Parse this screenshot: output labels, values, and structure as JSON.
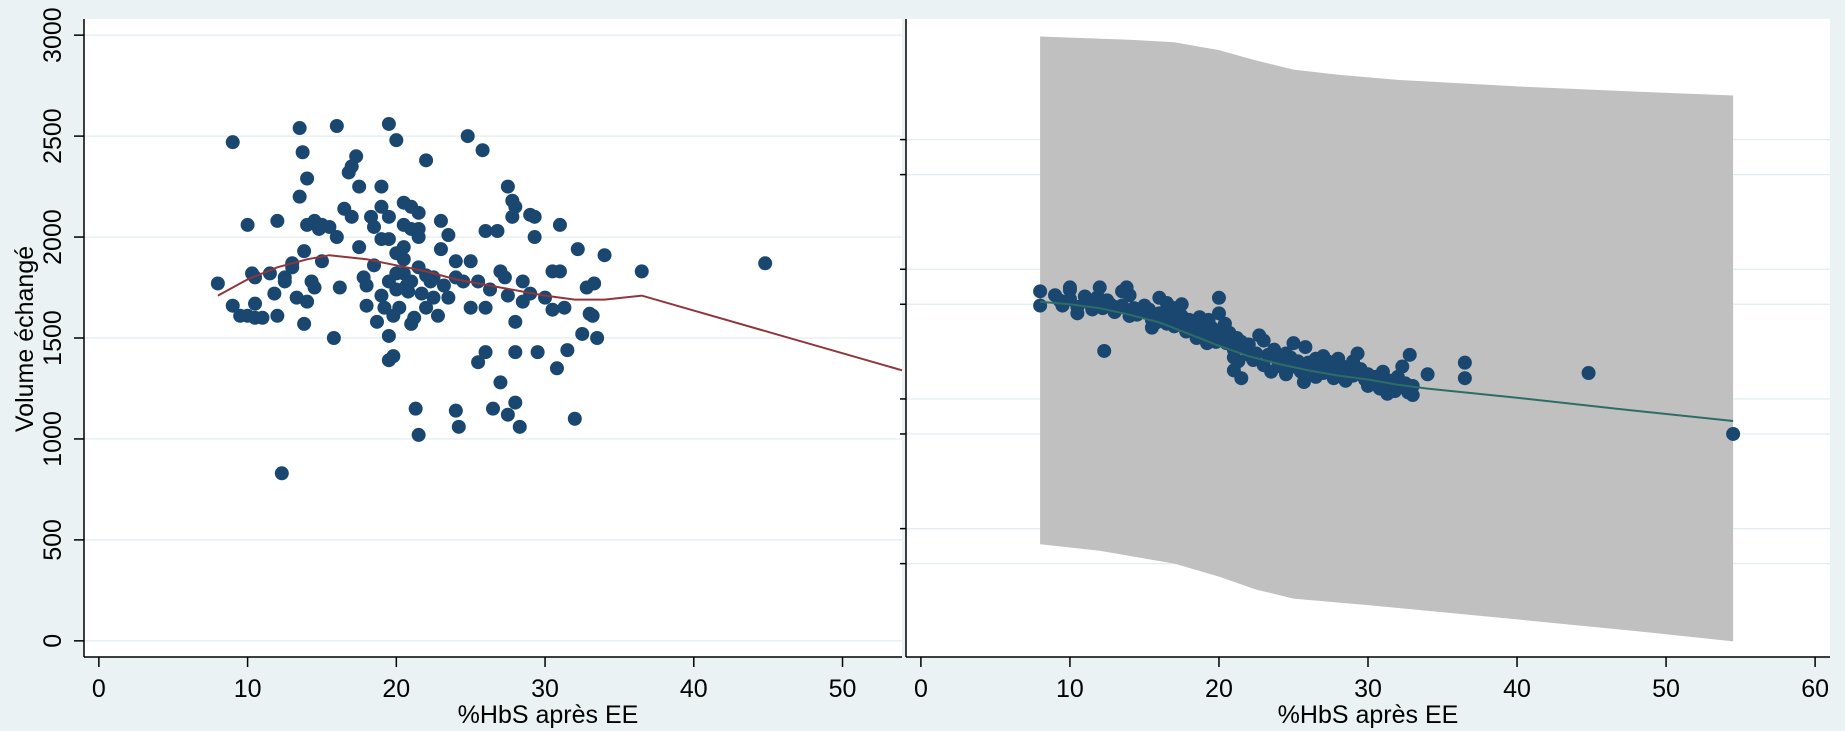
{
  "colors": {
    "background": "#eaf2f3",
    "plot_background": "#ffffff",
    "gridline": "#e2ecef",
    "marker": "#1a476f",
    "line_left": "#90353b",
    "line_right": "#2d6d66",
    "band": "#c0c0c0"
  },
  "chart_data": [
    {
      "type": "scatter",
      "xlabel": "%HbS après EE",
      "ylabel": "Volume échangé",
      "xlim": [
        -1,
        54
      ],
      "ylim": [
        -80,
        3080
      ],
      "xticks": [
        0,
        10,
        20,
        30,
        40,
        50
      ],
      "yticks": [
        0,
        500,
        1000,
        1500,
        2000,
        2500,
        3000
      ],
      "grid": true,
      "marker_color": "#1a476f",
      "points": [
        [
          8.0,
          1770
        ],
        [
          9.0,
          2470
        ],
        [
          9.0,
          1660
        ],
        [
          9.5,
          1610
        ],
        [
          10.0,
          2060
        ],
        [
          10.0,
          1610
        ],
        [
          10.3,
          1820
        ],
        [
          10.5,
          1800
        ],
        [
          10.5,
          1670
        ],
        [
          10.5,
          1600
        ],
        [
          11.0,
          1600
        ],
        [
          11.5,
          1820
        ],
        [
          11.8,
          1720
        ],
        [
          12.0,
          2080
        ],
        [
          12.0,
          1610
        ],
        [
          12.3,
          830
        ],
        [
          12.5,
          1800
        ],
        [
          12.5,
          1780
        ],
        [
          13.0,
          1870
        ],
        [
          13.0,
          1850
        ],
        [
          13.3,
          1700
        ],
        [
          13.5,
          2540
        ],
        [
          13.5,
          2200
        ],
        [
          13.7,
          2420
        ],
        [
          13.8,
          1930
        ],
        [
          13.8,
          1570
        ],
        [
          14.0,
          2290
        ],
        [
          14.0,
          2060
        ],
        [
          14.0,
          1680
        ],
        [
          14.3,
          1780
        ],
        [
          14.5,
          2080
        ],
        [
          14.5,
          1750
        ],
        [
          14.8,
          2040
        ],
        [
          15.0,
          2060
        ],
        [
          15.0,
          1880
        ],
        [
          15.5,
          2050
        ],
        [
          15.8,
          1500
        ],
        [
          16.0,
          2550
        ],
        [
          16.0,
          2000
        ],
        [
          16.2,
          1750
        ],
        [
          16.5,
          2140
        ],
        [
          16.8,
          2320
        ],
        [
          17.0,
          2350
        ],
        [
          17.0,
          2100
        ],
        [
          17.3,
          2400
        ],
        [
          17.5,
          2250
        ],
        [
          17.5,
          1950
        ],
        [
          17.8,
          1800
        ],
        [
          18.0,
          1760
        ],
        [
          18.0,
          1660
        ],
        [
          18.3,
          2100
        ],
        [
          18.5,
          2050
        ],
        [
          18.5,
          1860
        ],
        [
          18.7,
          1580
        ],
        [
          19.0,
          2250
        ],
        [
          19.0,
          2150
        ],
        [
          19.0,
          1990
        ],
        [
          19.0,
          1710
        ],
        [
          19.2,
          1650
        ],
        [
          19.5,
          2560
        ],
        [
          19.5,
          2100
        ],
        [
          19.5,
          1990
        ],
        [
          19.5,
          1780
        ],
        [
          19.5,
          1510
        ],
        [
          19.5,
          1390
        ],
        [
          19.8,
          1610
        ],
        [
          19.8,
          1410
        ],
        [
          20.0,
          2480
        ],
        [
          20.0,
          1920
        ],
        [
          20.0,
          1820
        ],
        [
          20.0,
          1740
        ],
        [
          20.2,
          1650
        ],
        [
          20.5,
          2170
        ],
        [
          20.5,
          2060
        ],
        [
          20.5,
          1950
        ],
        [
          20.5,
          1890
        ],
        [
          20.5,
          1820
        ],
        [
          20.7,
          1760
        ],
        [
          20.8,
          1730
        ],
        [
          21.0,
          2150
        ],
        [
          21.0,
          2040
        ],
        [
          21.0,
          1780
        ],
        [
          21.0,
          1570
        ],
        [
          21.2,
          1600
        ],
        [
          21.3,
          1150
        ],
        [
          21.5,
          2120
        ],
        [
          21.5,
          2040
        ],
        [
          21.5,
          2000
        ],
        [
          21.5,
          1850
        ],
        [
          21.5,
          1020
        ],
        [
          21.7,
          1720
        ],
        [
          22.0,
          2380
        ],
        [
          22.0,
          1810
        ],
        [
          22.0,
          1650
        ],
        [
          22.3,
          1780
        ],
        [
          22.5,
          1800
        ],
        [
          22.5,
          1700
        ],
        [
          22.8,
          1610
        ],
        [
          23.0,
          2080
        ],
        [
          23.0,
          1940
        ],
        [
          23.2,
          1760
        ],
        [
          23.5,
          2010
        ],
        [
          23.5,
          1700
        ],
        [
          24.0,
          1880
        ],
        [
          24.0,
          1800
        ],
        [
          24.0,
          1140
        ],
        [
          24.2,
          1060
        ],
        [
          24.5,
          1780
        ],
        [
          24.8,
          2500
        ],
        [
          25.0,
          1880
        ],
        [
          25.0,
          1650
        ],
        [
          25.5,
          1780
        ],
        [
          25.5,
          1380
        ],
        [
          25.8,
          2430
        ],
        [
          26.0,
          2030
        ],
        [
          26.0,
          1650
        ],
        [
          26.0,
          1430
        ],
        [
          26.3,
          1740
        ],
        [
          26.5,
          1150
        ],
        [
          26.8,
          2030
        ],
        [
          27.0,
          1830
        ],
        [
          27.0,
          1280
        ],
        [
          27.3,
          1800
        ],
        [
          27.5,
          2250
        ],
        [
          27.5,
          1710
        ],
        [
          27.5,
          1120
        ],
        [
          27.8,
          2180
        ],
        [
          27.8,
          2100
        ],
        [
          28.0,
          2150
        ],
        [
          28.0,
          1580
        ],
        [
          28.0,
          1430
        ],
        [
          28.0,
          1180
        ],
        [
          28.3,
          1060
        ],
        [
          28.5,
          1780
        ],
        [
          28.5,
          1680
        ],
        [
          29.0,
          2110
        ],
        [
          29.0,
          1720
        ],
        [
          29.3,
          2100
        ],
        [
          29.3,
          2000
        ],
        [
          29.5,
          1430
        ],
        [
          30.0,
          1700
        ],
        [
          30.5,
          1830
        ],
        [
          30.5,
          1640
        ],
        [
          30.8,
          1350
        ],
        [
          31.0,
          1830
        ],
        [
          31.0,
          2060
        ],
        [
          31.3,
          1650
        ],
        [
          31.5,
          1440
        ],
        [
          32.0,
          1100
        ],
        [
          32.2,
          1940
        ],
        [
          32.5,
          1520
        ],
        [
          32.8,
          1750
        ],
        [
          33.0,
          1620
        ],
        [
          33.2,
          1610
        ],
        [
          33.3,
          1770
        ],
        [
          33.5,
          1500
        ],
        [
          34.0,
          1910
        ],
        [
          36.5,
          1830
        ],
        [
          44.8,
          1870
        ]
      ],
      "line": [
        [
          8.0,
          1710
        ],
        [
          10.0,
          1790
        ],
        [
          12.0,
          1850
        ],
        [
          14.0,
          1890
        ],
        [
          15.5,
          1910
        ],
        [
          18.0,
          1890
        ],
        [
          20.0,
          1860
        ],
        [
          22.0,
          1830
        ],
        [
          24.0,
          1790
        ],
        [
          27.0,
          1750
        ],
        [
          30.0,
          1710
        ],
        [
          32.0,
          1690
        ],
        [
          34.0,
          1690
        ],
        [
          36.5,
          1710
        ],
        [
          54.0,
          1340
        ]
      ],
      "line_color": "#90353b"
    },
    {
      "type": "scatter",
      "xlabel": "%HbS après EE",
      "ylabel": "",
      "xlim": [
        -1,
        61
      ],
      "xticks": [
        0,
        10,
        20,
        30,
        40,
        50,
        60
      ],
      "grid": true,
      "marker_color": "#1a476f",
      "band_upper": [
        [
          8.0,
          3.065
        ],
        [
          14.0,
          3.04
        ],
        [
          17.0,
          3.02
        ],
        [
          20.0,
          2.96
        ],
        [
          22.5,
          2.88
        ],
        [
          25.0,
          2.81
        ],
        [
          28.0,
          2.77
        ],
        [
          32.0,
          2.73
        ],
        [
          40.0,
          2.68
        ],
        [
          48.0,
          2.64
        ],
        [
          54.5,
          2.61
        ]
      ],
      "band_lower": [
        [
          8.0,
          -0.85
        ],
        [
          12.0,
          -0.9
        ],
        [
          17.0,
          -1.0
        ],
        [
          20.0,
          -1.1
        ],
        [
          22.5,
          -1.2
        ],
        [
          25.0,
          -1.27
        ],
        [
          30.0,
          -1.32
        ],
        [
          40.0,
          -1.43
        ],
        [
          48.0,
          -1.52
        ],
        [
          54.5,
          -1.6
        ]
      ],
      "line": [
        [
          8.0,
          1.02
        ],
        [
          10.0,
          1.0
        ],
        [
          12.0,
          0.97
        ],
        [
          14.0,
          0.92
        ],
        [
          16.0,
          0.86
        ],
        [
          18.0,
          0.77
        ],
        [
          20.0,
          0.68
        ],
        [
          22.0,
          0.6
        ],
        [
          24.0,
          0.54
        ],
        [
          26.0,
          0.49
        ],
        [
          28.0,
          0.45
        ],
        [
          30.0,
          0.42
        ],
        [
          32.0,
          0.38
        ],
        [
          34.0,
          0.35
        ],
        [
          40.0,
          0.28
        ],
        [
          47.0,
          0.19
        ],
        [
          54.5,
          0.1
        ]
      ],
      "line_color": "#2d6d66",
      "points": [
        [
          8.0,
          1.1
        ],
        [
          8.0,
          0.99
        ],
        [
          9.0,
          1.07
        ],
        [
          9.3,
          1.03
        ],
        [
          9.5,
          0.99
        ],
        [
          10.0,
          1.13
        ],
        [
          10.0,
          1.11
        ],
        [
          10.0,
          1.04
        ],
        [
          10.5,
          0.98
        ],
        [
          10.5,
          0.93
        ],
        [
          11.0,
          1.06
        ],
        [
          11.3,
          1.01
        ],
        [
          11.5,
          0.96
        ],
        [
          11.8,
          1.05
        ],
        [
          12.0,
          1.13
        ],
        [
          12.0,
          1.04
        ],
        [
          12.2,
          0.97
        ],
        [
          12.3,
          0.64
        ],
        [
          12.5,
          1.03
        ],
        [
          12.7,
          1.0
        ],
        [
          13.0,
          0.98
        ],
        [
          13.0,
          0.94
        ],
        [
          13.5,
          1.1
        ],
        [
          13.5,
          0.99
        ],
        [
          13.8,
          1.13
        ],
        [
          14.0,
          1.07
        ],
        [
          14.0,
          0.91
        ],
        [
          14.3,
          0.97
        ],
        [
          14.5,
          0.92
        ],
        [
          15.0,
          0.99
        ],
        [
          15.0,
          0.94
        ],
        [
          15.3,
          0.96
        ],
        [
          15.5,
          0.88
        ],
        [
          15.5,
          0.82
        ],
        [
          15.8,
          0.86
        ],
        [
          16.0,
          1.05
        ],
        [
          16.0,
          0.93
        ],
        [
          16.3,
          0.9
        ],
        [
          16.5,
          0.85
        ],
        [
          16.5,
          1.01
        ],
        [
          16.8,
          0.94
        ],
        [
          17.0,
          0.97
        ],
        [
          17.0,
          0.83
        ],
        [
          17.2,
          0.89
        ],
        [
          17.5,
          1.0
        ],
        [
          17.5,
          0.91
        ],
        [
          17.7,
          0.85
        ],
        [
          17.8,
          0.79
        ],
        [
          18.0,
          0.88
        ],
        [
          18.2,
          0.8
        ],
        [
          18.5,
          0.87
        ],
        [
          18.5,
          0.74
        ],
        [
          18.7,
          0.9
        ],
        [
          18.8,
          0.78
        ],
        [
          19.0,
          0.84
        ],
        [
          19.0,
          0.77
        ],
        [
          19.2,
          0.7
        ],
        [
          19.3,
          0.88
        ],
        [
          19.5,
          0.82
        ],
        [
          19.7,
          0.75
        ],
        [
          19.8,
          0.71
        ],
        [
          20.0,
          1.05
        ],
        [
          20.0,
          0.93
        ],
        [
          20.0,
          0.8
        ],
        [
          20.2,
          0.73
        ],
        [
          20.4,
          0.85
        ],
        [
          20.5,
          0.7
        ],
        [
          20.7,
          0.78
        ],
        [
          21.0,
          0.65
        ],
        [
          21.0,
          0.59
        ],
        [
          21.0,
          0.49
        ],
        [
          21.2,
          0.74
        ],
        [
          21.3,
          0.56
        ],
        [
          21.5,
          0.71
        ],
        [
          21.5,
          0.43
        ],
        [
          21.8,
          0.66
        ],
        [
          22.0,
          0.69
        ],
        [
          22.0,
          0.61
        ],
        [
          22.3,
          0.57
        ],
        [
          22.5,
          0.62
        ],
        [
          22.7,
          0.76
        ],
        [
          23.0,
          0.72
        ],
        [
          23.0,
          0.53
        ],
        [
          23.3,
          0.61
        ],
        [
          23.5,
          0.48
        ],
        [
          23.7,
          0.65
        ],
        [
          24.0,
          0.58
        ],
        [
          24.0,
          0.54
        ],
        [
          24.3,
          0.51
        ],
        [
          24.5,
          0.62
        ],
        [
          24.5,
          0.46
        ],
        [
          24.8,
          0.59
        ],
        [
          25.0,
          0.7
        ],
        [
          25.0,
          0.52
        ],
        [
          25.3,
          0.56
        ],
        [
          25.5,
          0.48
        ],
        [
          25.7,
          0.4
        ],
        [
          25.8,
          0.67
        ],
        [
          26.0,
          0.55
        ],
        [
          26.2,
          0.49
        ],
        [
          26.5,
          0.58
        ],
        [
          26.5,
          0.44
        ],
        [
          26.8,
          0.52
        ],
        [
          27.0,
          0.6
        ],
        [
          27.0,
          0.47
        ],
        [
          27.3,
          0.56
        ],
        [
          27.5,
          0.5
        ],
        [
          27.7,
          0.43
        ],
        [
          28.0,
          0.58
        ],
        [
          28.0,
          0.46
        ],
        [
          28.3,
          0.52
        ],
        [
          28.5,
          0.41
        ],
        [
          28.8,
          0.49
        ],
        [
          29.0,
          0.56
        ],
        [
          29.0,
          0.45
        ],
        [
          29.3,
          0.62
        ],
        [
          29.5,
          0.5
        ],
        [
          29.8,
          0.42
        ],
        [
          30.0,
          0.46
        ],
        [
          30.0,
          0.37
        ],
        [
          30.5,
          0.44
        ],
        [
          30.8,
          0.35
        ],
        [
          31.0,
          0.48
        ],
        [
          31.0,
          0.39
        ],
        [
          31.3,
          0.31
        ],
        [
          31.5,
          0.41
        ],
        [
          31.8,
          0.33
        ],
        [
          32.0,
          0.44
        ],
        [
          32.0,
          0.36
        ],
        [
          32.3,
          0.52
        ],
        [
          32.5,
          0.39
        ],
        [
          32.7,
          0.32
        ],
        [
          32.8,
          0.61
        ],
        [
          33.0,
          0.37
        ],
        [
          33.0,
          0.3
        ],
        [
          34.0,
          0.46
        ],
        [
          36.5,
          0.55
        ],
        [
          36.5,
          0.43
        ],
        [
          44.8,
          0.47
        ],
        [
          54.5,
          0.0
        ]
      ]
    }
  ]
}
